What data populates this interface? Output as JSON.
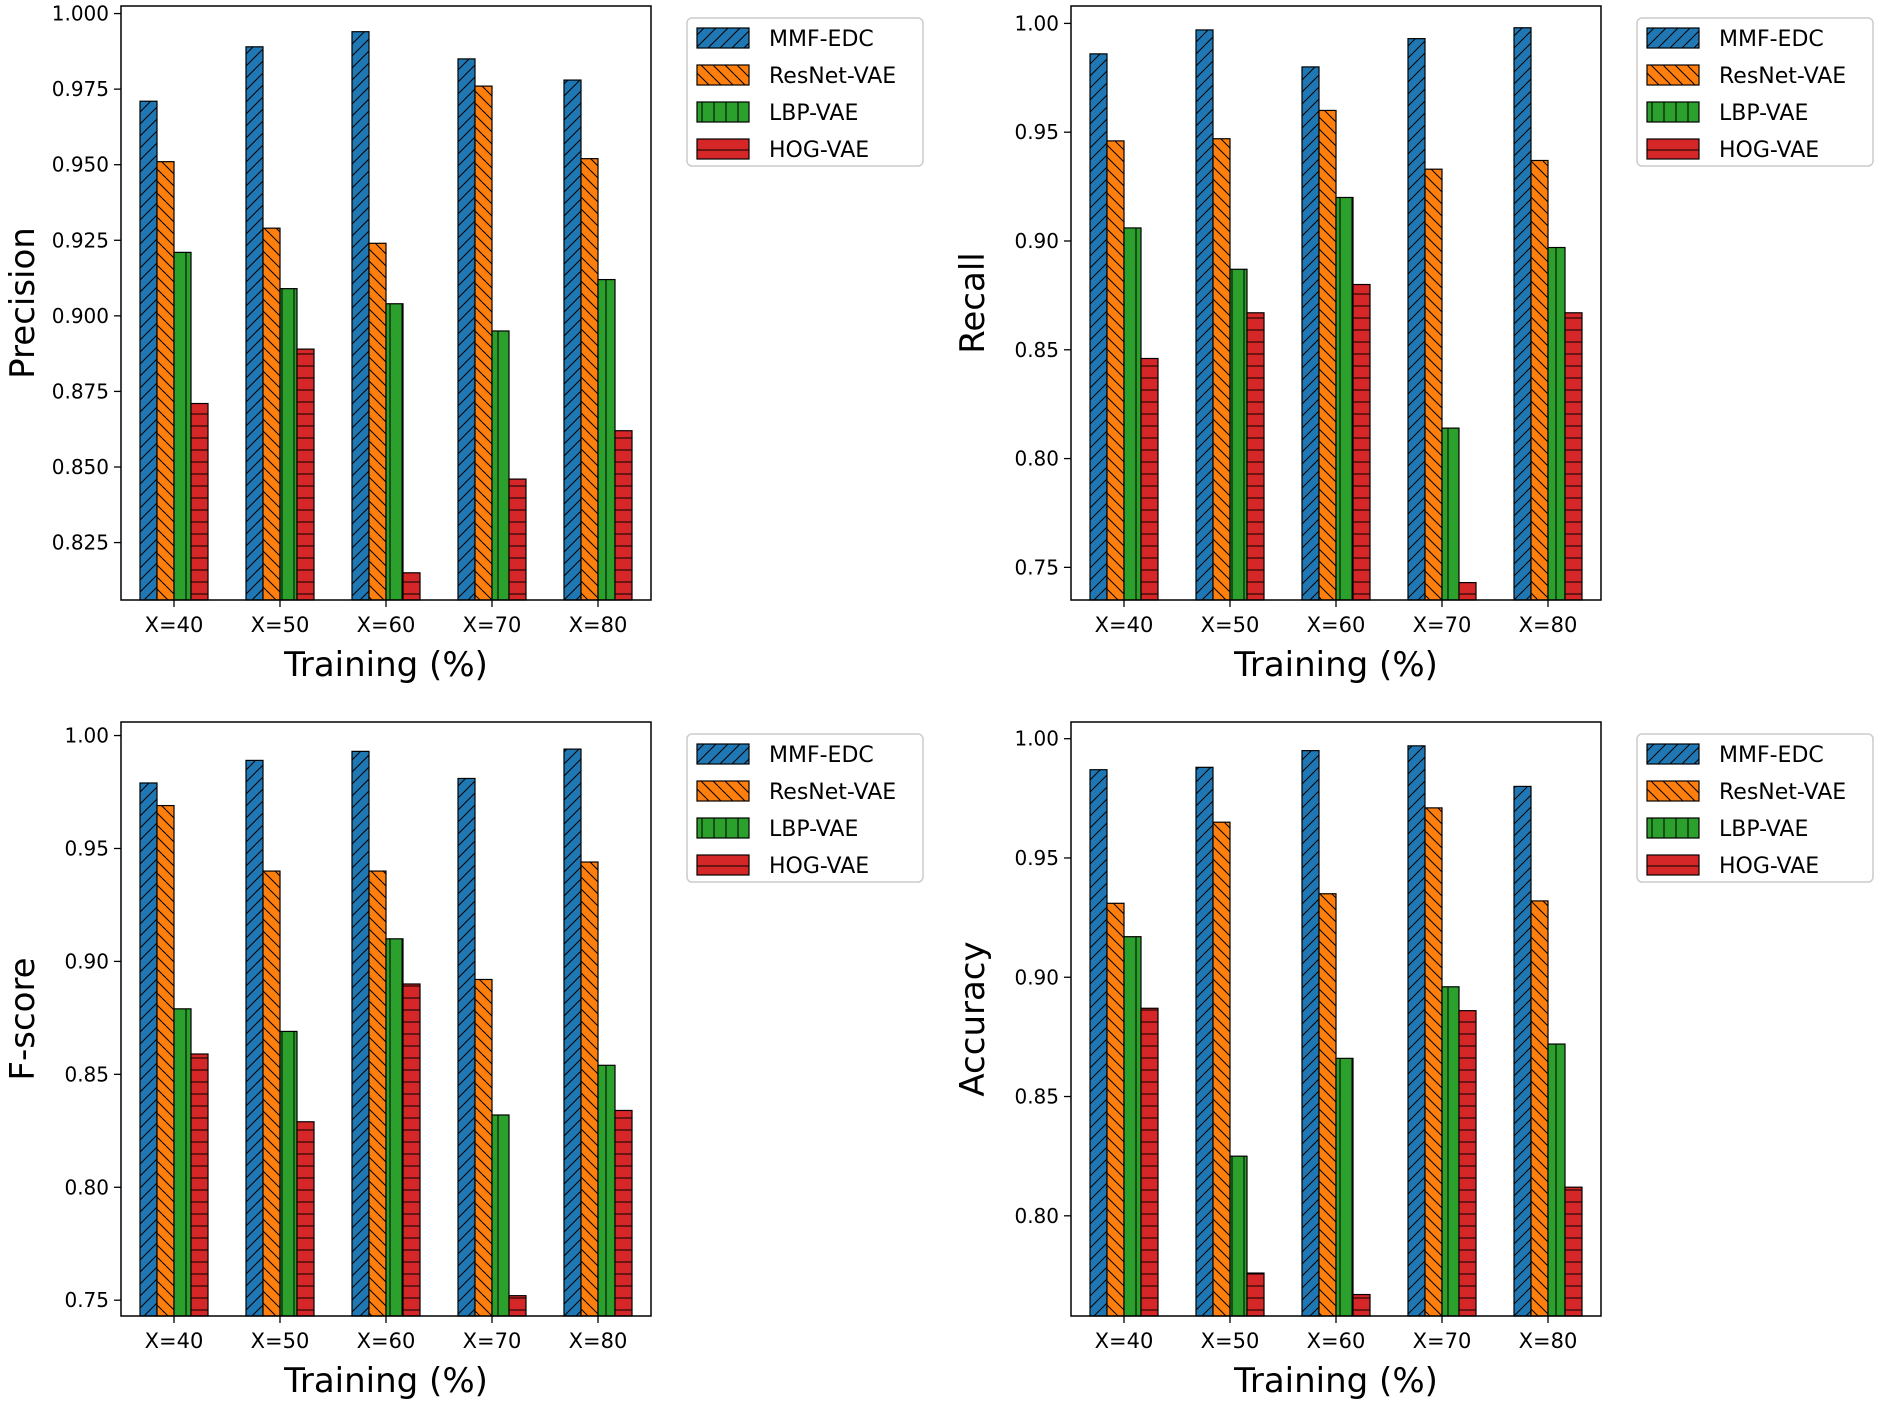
{
  "figure": {
    "colors": {
      "MMF-EDC": "#1f77b4",
      "ResNet-VAE": "#ff7f0e",
      "LBP-VAE": "#2ca02c",
      "HOG-VAE": "#d62728"
    },
    "hatches": {
      "MMF-EDC": "forward-slash",
      "ResNet-VAE": "back-slash",
      "LBP-VAE": "vertical",
      "HOG-VAE": "horizontal"
    }
  },
  "chart_data": [
    {
      "type": "bar",
      "title": "",
      "xlabel": "Training (%)",
      "ylabel": "Precision",
      "categories": [
        "X=40",
        "X=50",
        "X=60",
        "X=70",
        "X=80"
      ],
      "ylim": [
        0.806,
        1.0025
      ],
      "yticks": [
        "1.000",
        "0.975",
        "0.950",
        "0.925",
        "0.900",
        "0.875",
        "0.850",
        "0.825"
      ],
      "ytick_values": [
        1.0,
        0.975,
        0.95,
        0.925,
        0.9,
        0.875,
        0.85,
        0.825
      ],
      "legend": "outside-right-top",
      "series": [
        {
          "name": "MMF-EDC",
          "values": [
            0.971,
            0.989,
            0.994,
            0.985,
            0.978
          ]
        },
        {
          "name": "ResNet-VAE",
          "values": [
            0.951,
            0.929,
            0.924,
            0.976,
            0.952
          ]
        },
        {
          "name": "LBP-VAE",
          "values": [
            0.921,
            0.909,
            0.904,
            0.895,
            0.912
          ]
        },
        {
          "name": "HOG-VAE",
          "values": [
            0.871,
            0.889,
            0.815,
            0.846,
            0.862
          ]
        }
      ]
    },
    {
      "type": "bar",
      "title": "",
      "xlabel": "Training (%)",
      "ylabel": "Recall",
      "categories": [
        "X=40",
        "X=50",
        "X=60",
        "X=70",
        "X=80"
      ],
      "ylim": [
        0.735,
        1.008
      ],
      "yticks": [
        "1.00",
        "0.95",
        "0.90",
        "0.85",
        "0.80",
        "0.75"
      ],
      "ytick_values": [
        1.0,
        0.95,
        0.9,
        0.85,
        0.8,
        0.75
      ],
      "legend": "outside-right-top",
      "series": [
        {
          "name": "MMF-EDC",
          "values": [
            0.986,
            0.997,
            0.98,
            0.993,
            0.998
          ]
        },
        {
          "name": "ResNet-VAE",
          "values": [
            0.946,
            0.947,
            0.96,
            0.933,
            0.937
          ]
        },
        {
          "name": "LBP-VAE",
          "values": [
            0.906,
            0.887,
            0.92,
            0.814,
            0.897
          ]
        },
        {
          "name": "HOG-VAE",
          "values": [
            0.846,
            0.867,
            0.88,
            0.743,
            0.867
          ]
        }
      ]
    },
    {
      "type": "bar",
      "title": "",
      "xlabel": "Training (%)",
      "ylabel": "F-score",
      "categories": [
        "X=40",
        "X=50",
        "X=60",
        "X=70",
        "X=80"
      ],
      "ylim": [
        0.743,
        1.006
      ],
      "yticks": [
        "1.00",
        "0.95",
        "0.90",
        "0.85",
        "0.80",
        "0.75"
      ],
      "ytick_values": [
        1.0,
        0.95,
        0.9,
        0.85,
        0.8,
        0.75
      ],
      "legend": "outside-right-top",
      "series": [
        {
          "name": "MMF-EDC",
          "values": [
            0.979,
            0.989,
            0.993,
            0.981,
            0.994
          ]
        },
        {
          "name": "ResNet-VAE",
          "values": [
            0.969,
            0.94,
            0.94,
            0.892,
            0.944
          ]
        },
        {
          "name": "LBP-VAE",
          "values": [
            0.879,
            0.869,
            0.91,
            0.832,
            0.854
          ]
        },
        {
          "name": "HOG-VAE",
          "values": [
            0.859,
            0.829,
            0.89,
            0.752,
            0.834
          ]
        }
      ]
    },
    {
      "type": "bar",
      "title": "",
      "xlabel": "Training (%)",
      "ylabel": "Accuracy",
      "categories": [
        "X=40",
        "X=50",
        "X=60",
        "X=70",
        "X=80"
      ],
      "ylim": [
        0.758,
        1.007
      ],
      "yticks": [
        "1.00",
        "0.95",
        "0.90",
        "0.85",
        "0.80"
      ],
      "ytick_values": [
        1.0,
        0.95,
        0.9,
        0.85,
        0.8
      ],
      "legend": "outside-right-top",
      "series": [
        {
          "name": "MMF-EDC",
          "values": [
            0.987,
            0.988,
            0.995,
            0.997,
            0.98
          ]
        },
        {
          "name": "ResNet-VAE",
          "values": [
            0.931,
            0.965,
            0.935,
            0.971,
            0.932
          ]
        },
        {
          "name": "LBP-VAE",
          "values": [
            0.917,
            0.825,
            0.866,
            0.896,
            0.872
          ]
        },
        {
          "name": "HOG-VAE",
          "values": [
            0.887,
            0.776,
            0.767,
            0.886,
            0.812
          ]
        }
      ]
    }
  ]
}
